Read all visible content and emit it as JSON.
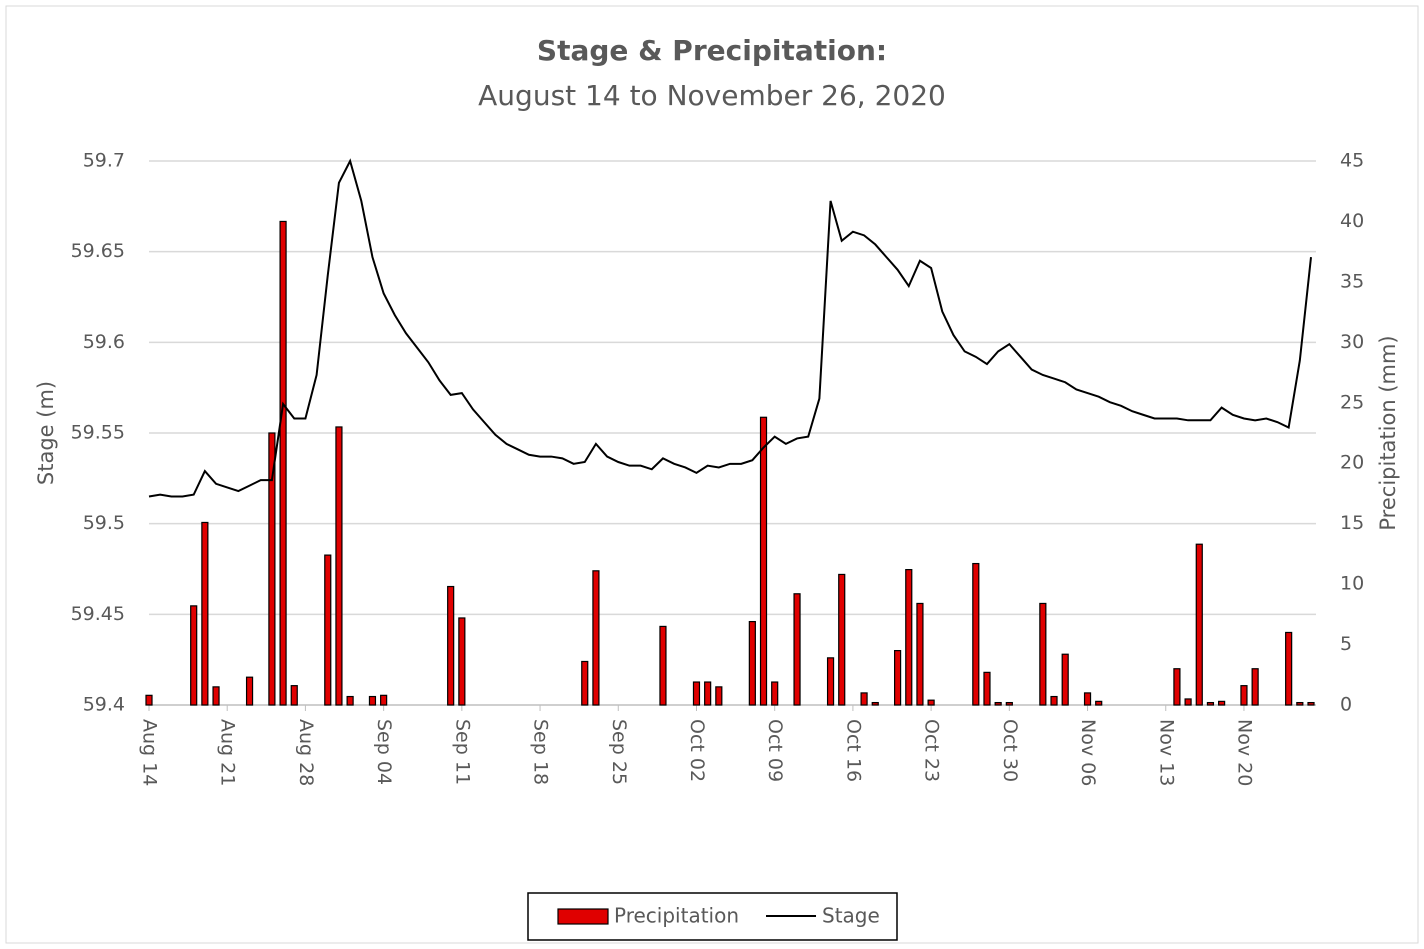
{
  "chart_data": {
    "type": "combo",
    "title": "Stage & Precipitation:",
    "subtitle": "August 14 to November 26, 2020",
    "y_label": "Stage (m)",
    "y2_label": "Precipitation (mm)",
    "categories": [
      "Aug 14",
      null,
      null,
      null,
      null,
      null,
      null,
      "Aug 21",
      null,
      null,
      null,
      null,
      null,
      null,
      "Aug 28",
      null,
      null,
      null,
      null,
      null,
      null,
      "Sep 04",
      null,
      null,
      null,
      null,
      null,
      null,
      "Sep 11",
      null,
      null,
      null,
      null,
      null,
      null,
      "Sep 18",
      null,
      null,
      null,
      null,
      null,
      null,
      "Sep 25",
      null,
      null,
      null,
      null,
      null,
      null,
      "Oct 02",
      null,
      null,
      null,
      null,
      null,
      null,
      "Oct 09",
      null,
      null,
      null,
      null,
      null,
      null,
      "Oct 16",
      null,
      null,
      null,
      null,
      null,
      null,
      "Oct 23",
      null,
      null,
      null,
      null,
      null,
      null,
      "Oct 30",
      null,
      null,
      null,
      null,
      null,
      null,
      "Nov 06",
      null,
      null,
      null,
      null,
      null,
      null,
      "Nov 13",
      null,
      null,
      null,
      null,
      null,
      null,
      "Nov 20",
      null,
      null,
      null,
      null,
      null,
      null
    ],
    "ylim": [
      59.4,
      59.7
    ],
    "yticks": [
      59.4,
      59.45,
      59.5,
      59.55,
      59.6,
      59.65,
      59.7
    ],
    "y2lim": [
      0,
      45
    ],
    "y2ticks": [
      0,
      5,
      10,
      15,
      20,
      25,
      30,
      35,
      40,
      45
    ],
    "grid": true,
    "legend": "bottom",
    "series": [
      {
        "name": "Precipitation",
        "type": "bar",
        "axis": "y2",
        "color": "#e00000",
        "values": [
          0.8,
          null,
          null,
          null,
          8.2,
          15.1,
          1.5,
          null,
          null,
          2.3,
          null,
          22.5,
          40.0,
          1.6,
          null,
          null,
          12.4,
          23.0,
          0.7,
          null,
          0.7,
          0.8,
          null,
          null,
          null,
          null,
          null,
          9.8,
          7.2,
          null,
          null,
          null,
          null,
          null,
          null,
          null,
          null,
          null,
          null,
          3.6,
          11.1,
          null,
          null,
          null,
          null,
          null,
          6.5,
          null,
          null,
          1.9,
          1.9,
          1.5,
          null,
          null,
          6.9,
          23.8,
          1.9,
          null,
          9.2,
          null,
          null,
          3.9,
          10.8,
          null,
          1.0,
          0.2,
          null,
          4.5,
          11.2,
          8.4,
          0.4,
          null,
          null,
          null,
          11.7,
          2.7,
          0.2,
          0.2,
          null,
          null,
          8.4,
          0.7,
          4.2,
          null,
          1.0,
          0.3,
          null,
          null,
          null,
          null,
          null,
          null,
          3.0,
          0.5,
          13.3,
          0.2,
          0.3,
          null,
          1.6,
          3.0,
          null,
          null,
          6.0,
          0.2,
          0.2
        ]
      },
      {
        "name": "Stage",
        "type": "line",
        "axis": "y",
        "color": "#000000",
        "values": [
          59.515,
          59.516,
          59.515,
          59.515,
          59.516,
          59.529,
          59.522,
          59.52,
          59.518,
          59.521,
          59.524,
          59.524,
          59.566,
          59.558,
          59.558,
          59.582,
          59.637,
          59.688,
          59.7,
          59.678,
          59.647,
          59.627,
          59.615,
          59.605,
          59.597,
          59.589,
          59.579,
          59.571,
          59.572,
          59.563,
          59.556,
          59.549,
          59.544,
          59.541,
          59.538,
          59.537,
          59.537,
          59.536,
          59.533,
          59.534,
          59.544,
          59.537,
          59.534,
          59.532,
          59.532,
          59.53,
          59.536,
          59.533,
          59.531,
          59.528,
          59.532,
          59.531,
          59.533,
          59.533,
          59.535,
          59.542,
          59.548,
          59.544,
          59.547,
          59.548,
          59.569,
          59.678,
          59.656,
          59.661,
          59.659,
          59.654,
          59.647,
          59.64,
          59.631,
          59.645,
          59.641,
          59.617,
          59.604,
          59.595,
          59.592,
          59.588,
          59.595,
          59.599,
          59.592,
          59.585,
          59.582,
          59.58,
          59.578,
          59.574,
          59.572,
          59.57,
          59.567,
          59.565,
          59.562,
          59.56,
          59.558,
          59.558,
          59.558,
          59.557,
          59.557,
          59.557,
          59.564,
          59.56,
          59.558,
          59.557,
          59.558,
          59.556,
          59.553,
          59.59,
          59.647
        ]
      }
    ]
  }
}
